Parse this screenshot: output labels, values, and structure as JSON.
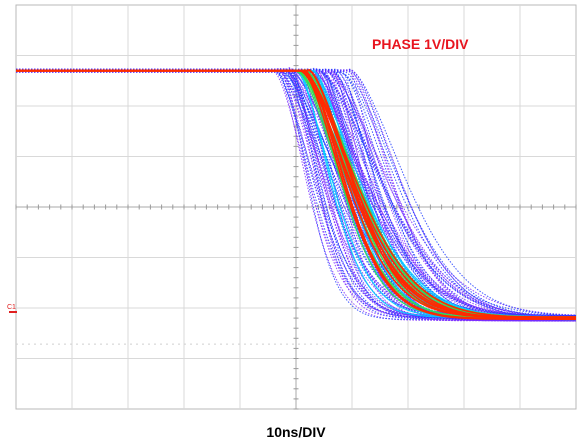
{
  "chart_data": {
    "type": "line",
    "title": "",
    "vertical_scale_label": "PHASE 1V/DIV",
    "time_scale_label": "10ns/DIV",
    "channel_marker": "C1",
    "grid": true,
    "divisions": {
      "x": 10,
      "y": 8
    },
    "units": {
      "x": "div",
      "y": "div"
    },
    "xlim": [
      0,
      10
    ],
    "ylim": [
      -4,
      4
    ],
    "waveform": "falling-edge persistence (eye) display",
    "edge": {
      "high_level_div": 2.7,
      "low_level_div": -2.2,
      "edge_start_div": [
        4.6,
        6.0
      ],
      "transition_width_div": [
        0.6,
        1.6
      ]
    },
    "persistence_colors": [
      "#7b2cff",
      "#1e3cff",
      "#00d2ff",
      "#30e050",
      "#ff2a00"
    ],
    "channel_marker_color": "#e02020",
    "label_color": "#e8141e"
  }
}
